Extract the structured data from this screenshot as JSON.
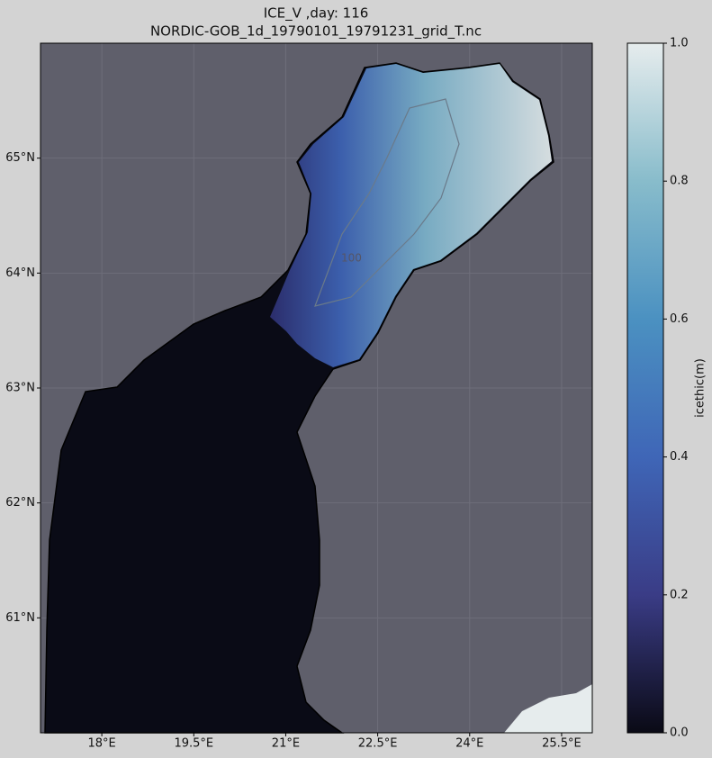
{
  "chart_data": {
    "type": "map",
    "title": "ICE_V ,day: 116",
    "subtitle": "NORDIC-GOB_1d_19790101_19791231_grid_T.nc",
    "xlim": [
      17.0,
      26.0
    ],
    "ylim": [
      60.0,
      66.0
    ],
    "xticks": [
      {
        "value": 18,
        "label": "18°E"
      },
      {
        "value": 19.5,
        "label": "19.5°E"
      },
      {
        "value": 21,
        "label": "21°E"
      },
      {
        "value": 22.5,
        "label": "22.5°E"
      },
      {
        "value": 24,
        "label": "24°E"
      },
      {
        "value": 25.5,
        "label": "25.5°E"
      }
    ],
    "yticks": [
      {
        "value": 61,
        "label": "61°N"
      },
      {
        "value": 62,
        "label": "62°N"
      },
      {
        "value": 63,
        "label": "63°N"
      },
      {
        "value": 64,
        "label": "64°N"
      },
      {
        "value": 65,
        "label": "65°N"
      }
    ],
    "grid": true,
    "contour_label": "100",
    "colorbar": {
      "label": "icethic(m)",
      "lim": [
        0,
        1
      ],
      "ticks": [
        {
          "value": 0,
          "label": "0.0"
        },
        {
          "value": 0.2,
          "label": "0.2"
        },
        {
          "value": 0.4,
          "label": "0.4"
        },
        {
          "value": 0.6,
          "label": "0.6"
        },
        {
          "value": 0.8,
          "label": "0.8"
        },
        {
          "value": 1,
          "label": "1.0"
        }
      ],
      "colors": [
        "#0a0a15",
        "#3a3c86",
        "#3f66b7",
        "#4b91c1",
        "#88bccb",
        "#e6eced"
      ]
    }
  }
}
